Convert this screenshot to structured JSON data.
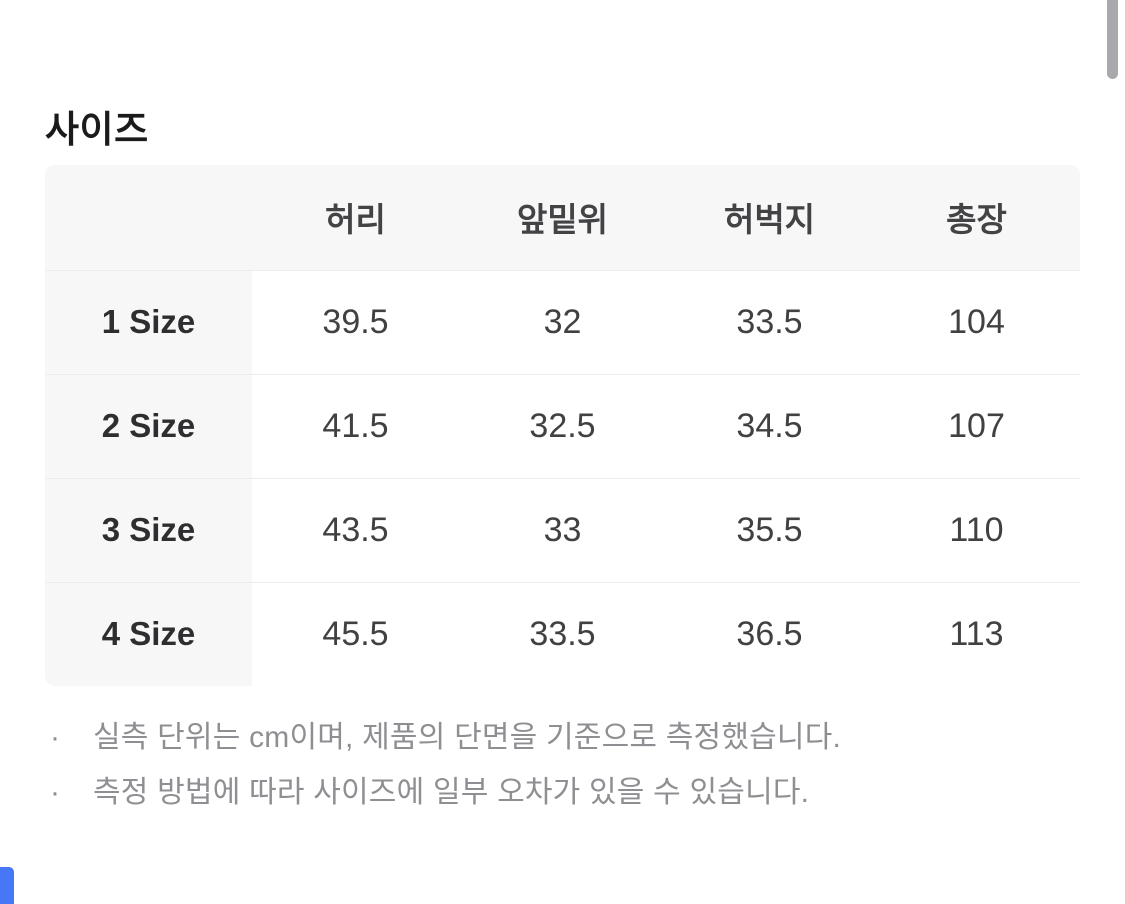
{
  "page": {
    "title": "사이즈"
  },
  "size_table": {
    "headers": [
      "",
      "허리",
      "앞밑위",
      "허벅지",
      "총장"
    ],
    "rows": [
      {
        "label": "1 Size",
        "values": [
          "39.5",
          "32",
          "33.5",
          "104"
        ]
      },
      {
        "label": "2 Size",
        "values": [
          "41.5",
          "32.5",
          "34.5",
          "107"
        ]
      },
      {
        "label": "3 Size",
        "values": [
          "43.5",
          "33",
          "35.5",
          "110"
        ]
      },
      {
        "label": "4 Size",
        "values": [
          "45.5",
          "33.5",
          "36.5",
          "113"
        ]
      }
    ]
  },
  "notes": [
    {
      "bullet": "·",
      "text": "실측 단위는 cm이며, 제품의 단면을 기준으로 측정했습니다."
    },
    {
      "bullet": "·",
      "text": "측정 방법에 따라 사이즈에 일부 오차가 있을 수 있습니다."
    }
  ],
  "colors": {
    "accent_blue": "#4677f6",
    "header_bg": "#f7f7f8",
    "scrollbar_gray": "#a9a9ad",
    "note_gray": "#8f8f93"
  }
}
